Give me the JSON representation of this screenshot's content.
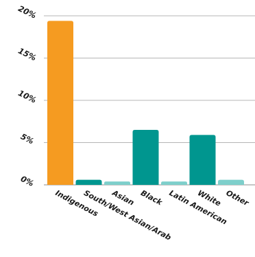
{
  "chart_data": {
    "type": "bar",
    "categories": [
      "Indigenous",
      "South/West Asian/Arab",
      "Asian",
      "Black",
      "Latin American",
      "White",
      "Other"
    ],
    "values": [
      19.4,
      0.6,
      0.4,
      6.5,
      0.4,
      5.9,
      0.6
    ],
    "bar_colors": [
      "#f59b21",
      "#00968f",
      "#7ecfcb",
      "#00968f",
      "#7ecfcb",
      "#00968f",
      "#7ecfcb"
    ],
    "ylim": [
      0,
      20
    ],
    "yticks": [
      0,
      5,
      10,
      15,
      20
    ],
    "ytick_labels": [
      "0%",
      "5%",
      "10%",
      "15%",
      "20%"
    ],
    "title": "",
    "xlabel": "",
    "ylabel": "",
    "grid": true,
    "legend": "none"
  }
}
